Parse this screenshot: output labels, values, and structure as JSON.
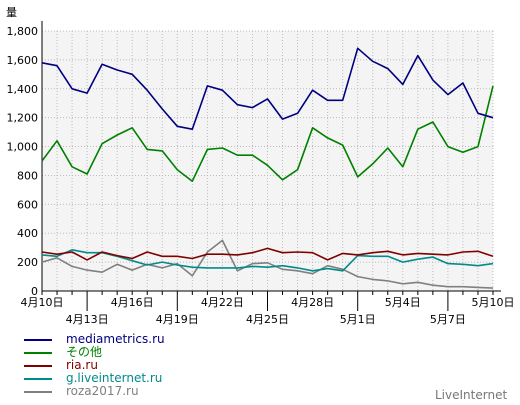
{
  "chart_data": {
    "type": "line",
    "ylabel": "量",
    "ylim": [
      0,
      1800
    ],
    "yticks": [
      0,
      200,
      400,
      600,
      800,
      1000,
      1200,
      1400,
      1600,
      1800
    ],
    "ytick_labels": [
      "0",
      "200",
      "400",
      "600",
      "800",
      "1,000",
      "1,200",
      "1,400",
      "1,600",
      "1,800"
    ],
    "x": [
      "4月10日",
      "4月11日",
      "4月12日",
      "4月13日",
      "4月14日",
      "4月15日",
      "4月16日",
      "4月17日",
      "4月18日",
      "4月19日",
      "4月20日",
      "4月21日",
      "4月22日",
      "4月23日",
      "4月24日",
      "4月25日",
      "4月26日",
      "4月27日",
      "4月28日",
      "4月29日",
      "4月30日",
      "5月1日",
      "5月2日",
      "5月3日",
      "5月4日",
      "5月5日",
      "5月6日",
      "5月7日",
      "5月8日",
      "5月9日",
      "5月10日"
    ],
    "xtick_labels_upper": [
      {
        "i": 0,
        "label": "4月10日"
      },
      {
        "i": 6,
        "label": "4月16日"
      },
      {
        "i": 12,
        "label": "4月22日"
      },
      {
        "i": 18,
        "label": "4月28日"
      },
      {
        "i": 24,
        "label": "5月4日"
      },
      {
        "i": 30,
        "label": "5月10日"
      }
    ],
    "xtick_labels_lower": [
      {
        "i": 3,
        "label": "4月13日"
      },
      {
        "i": 9,
        "label": "4月19日"
      },
      {
        "i": 15,
        "label": "4月25日"
      },
      {
        "i": 21,
        "label": "5月1日"
      },
      {
        "i": 27,
        "label": "5月7日"
      }
    ],
    "grid": true,
    "legend_position": "bottom-left",
    "series": [
      {
        "name": "mediametrics.ru",
        "color": "#000080",
        "values": [
          1580,
          1560,
          1400,
          1370,
          1570,
          1530,
          1500,
          1390,
          1260,
          1140,
          1120,
          1420,
          1390,
          1290,
          1270,
          1330,
          1190,
          1230,
          1390,
          1320,
          1320,
          1680,
          1590,
          1540,
          1430,
          1630,
          1460,
          1360,
          1440,
          1230,
          1200
        ]
      },
      {
        "name": "その他",
        "color": "#008000",
        "values": [
          900,
          1040,
          860,
          810,
          1020,
          1080,
          1130,
          980,
          970,
          840,
          760,
          980,
          990,
          940,
          940,
          870,
          770,
          840,
          1130,
          1060,
          1010,
          790,
          880,
          990,
          860,
          1120,
          1170,
          1000,
          960,
          1000,
          1420
        ]
      },
      {
        "name": "ria.ru",
        "color": "#800000",
        "values": [
          270,
          255,
          270,
          215,
          270,
          245,
          225,
          270,
          240,
          240,
          225,
          255,
          255,
          250,
          265,
          295,
          265,
          270,
          265,
          215,
          260,
          250,
          265,
          275,
          250,
          260,
          255,
          250,
          270,
          275,
          240
        ]
      },
      {
        "name": "g.liveinternet.ru",
        "color": "#008b8b",
        "values": [
          250,
          240,
          285,
          265,
          265,
          240,
          210,
          180,
          200,
          180,
          165,
          160,
          160,
          160,
          170,
          165,
          175,
          160,
          140,
          155,
          140,
          245,
          240,
          240,
          200,
          220,
          235,
          190,
          185,
          175,
          190
        ]
      },
      {
        "name": "roza2017.ru",
        "color": "#808080",
        "values": [
          200,
          230,
          170,
          145,
          130,
          185,
          145,
          185,
          160,
          190,
          105,
          270,
          350,
          140,
          190,
          195,
          150,
          140,
          120,
          175,
          150,
          100,
          80,
          70,
          50,
          60,
          40,
          30,
          30,
          25,
          20
        ]
      }
    ]
  },
  "watermark": "LiveInternet"
}
